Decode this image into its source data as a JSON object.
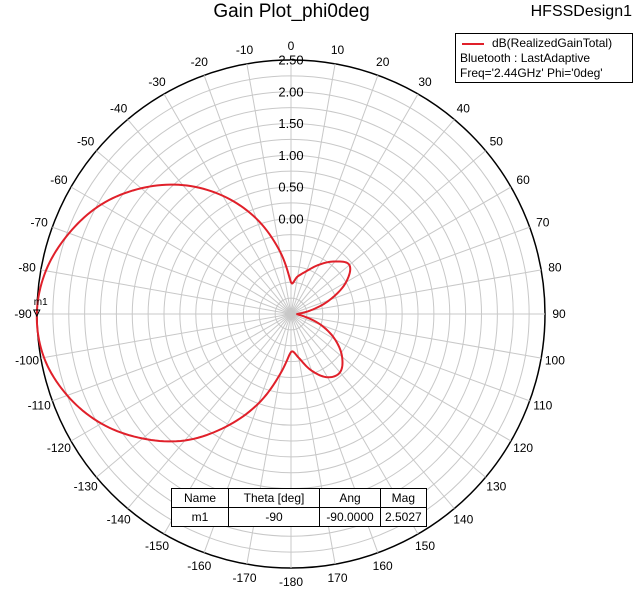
{
  "window": {
    "title": "Gain Plot_phi0deg",
    "design": "HFSSDesign1"
  },
  "legend": {
    "trace": "dB(RealizedGainTotal)",
    "setup": "Bluetooth : LastAdaptive",
    "params": "Freq='2.44GHz' Phi='0deg'"
  },
  "marker_table": {
    "headers": [
      "Name",
      "Theta [deg]",
      "Ang",
      "Mag"
    ],
    "row": [
      "m1",
      "-90",
      "-90.0000",
      "2.5027"
    ]
  },
  "colors": {
    "trace": "#e0202a",
    "grid": "#c8c8c8",
    "outer_ring": "#000000"
  },
  "chart_data": {
    "type": "line",
    "coordinate_system": "polar",
    "angle_unit": "deg",
    "angle_ticks": [
      -170,
      -160,
      -150,
      -140,
      -130,
      -120,
      -110,
      -100,
      -90,
      -80,
      -70,
      -60,
      -50,
      -40,
      -30,
      -20,
      -10,
      0,
      10,
      20,
      30,
      40,
      50,
      60,
      70,
      80,
      90,
      100,
      110,
      120,
      130,
      140,
      150,
      160,
      170,
      -180
    ],
    "radial_ticks": [
      "0.00",
      "0.50",
      "1.00",
      "1.50",
      "2.00",
      "2.50"
    ],
    "rlim": [
      -1.5,
      2.5
    ],
    "series": [
      {
        "name": "dB(RealizedGainTotal)",
        "theta": [
          0,
          10,
          20,
          30,
          40,
          50,
          60,
          70,
          80,
          90,
          100,
          110,
          120,
          130,
          140,
          150,
          160,
          170,
          180,
          -170,
          -160,
          -150,
          -140,
          -130,
          -120,
          -110,
          -100,
          -90,
          -80,
          -70,
          -60,
          -50,
          -40,
          -30,
          -20,
          -10
        ],
        "values": [
          -1.0,
          -0.9,
          -0.78,
          -0.6,
          -0.42,
          -0.3,
          -0.5,
          -0.85,
          -1.2,
          -1.4,
          -1.3,
          -1.0,
          -0.7,
          -0.45,
          -0.3,
          -0.35,
          -0.55,
          -0.8,
          -0.9,
          -0.55,
          0.0,
          0.55,
          1.1,
          1.55,
          1.95,
          2.25,
          2.45,
          2.5027,
          2.42,
          2.22,
          1.95,
          1.58,
          1.15,
          0.65,
          0.1,
          -0.5
        ]
      }
    ],
    "markers": [
      {
        "label": "m1",
        "theta": -90,
        "value": 2.5027
      }
    ]
  }
}
